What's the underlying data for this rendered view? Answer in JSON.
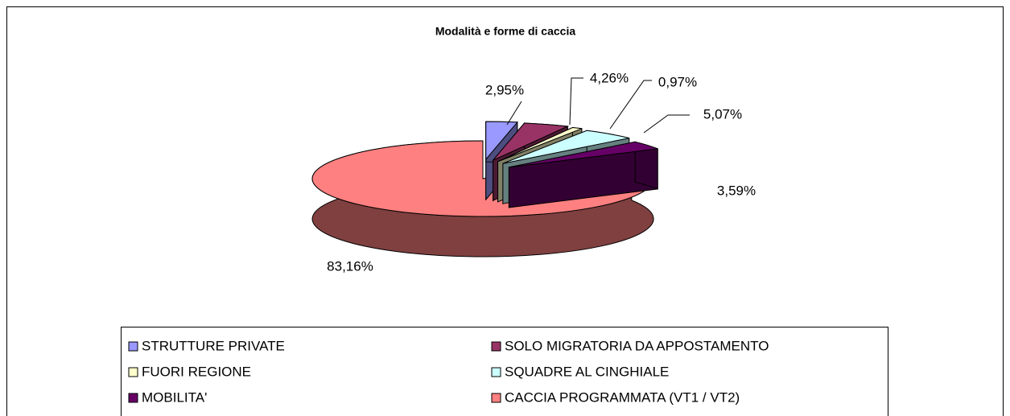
{
  "chart_data": {
    "type": "pie",
    "title": "Modalità e forme di caccia",
    "categories": [
      "STRUTTURE PRIVATE",
      "SOLO MIGRATORIA DA APPOSTAMENTO",
      "FUORI REGIONE",
      "SQUADRE AL CINGHIALE",
      "MOBILITA'",
      "CACCIA PROGRAMMATA (VT1 / VT2)"
    ],
    "values": [
      2.95,
      4.26,
      0.97,
      5.07,
      3.59,
      83.16
    ],
    "value_labels": [
      "2,95%",
      "4,26%",
      "0,97%",
      "5,07%",
      "3,59%",
      "83,16%"
    ],
    "colors": [
      "#9999ff",
      "#993366",
      "#ffffcc",
      "#ccffff",
      "#660066",
      "#ff8080"
    ],
    "legend": "bottom"
  }
}
